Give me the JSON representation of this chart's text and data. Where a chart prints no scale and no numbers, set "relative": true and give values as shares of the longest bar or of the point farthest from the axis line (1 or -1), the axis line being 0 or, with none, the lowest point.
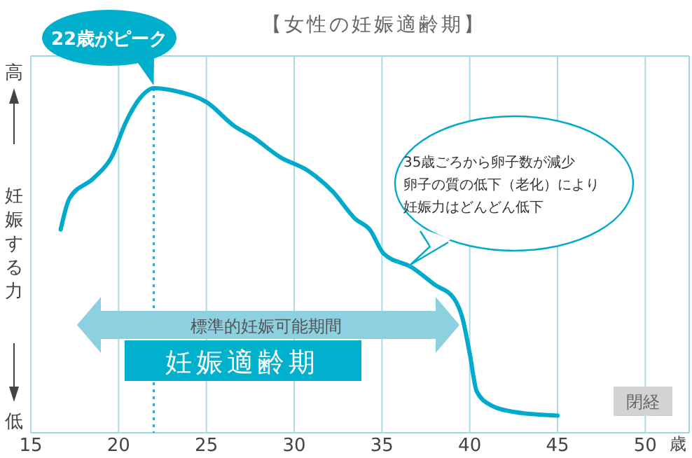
{
  "chart_data": {
    "type": "line",
    "title": "【女性の妊娠適齢期】",
    "ylabel": "妊娠する力",
    "xlabel": "歳",
    "relative": true,
    "grid": "x",
    "marker": "none",
    "xlim": [
      15,
      52.5
    ],
    "xticks": [
      15,
      20,
      25,
      30,
      35,
      40,
      45,
      50
    ],
    "x": [
      16.7,
      17.2,
      18.6,
      19.6,
      20.4,
      21.2,
      22,
      23.4,
      25,
      26.6,
      27.6,
      29.2,
      30.8,
      32.2,
      33.5,
      34.3,
      35.1,
      36.7,
      38,
      39.1,
      39.6,
      40,
      40.4,
      41.2,
      42.6,
      45
    ],
    "series": [
      {
        "color": "#00aacc",
        "values": [
          0.59,
          0.68,
          0.74,
          0.8,
          0.9,
          0.97,
          1,
          0.99,
          0.96,
          0.89,
          0.86,
          0.8,
          0.76,
          0.7,
          0.62,
          0.59,
          0.52,
          0.48,
          0.43,
          0.39,
          0.33,
          0.23,
          0.12,
          0.08,
          0.06,
          0.05
        ]
      }
    ],
    "ref_lines": [
      {
        "axis": "x",
        "value": 22,
        "color": "#33aacc",
        "line_style": "dotted"
      }
    ],
    "annotations": [
      {
        "text": "22歳がピーク",
        "x": 22,
        "y": 1
      },
      "35歳ごろから卵子数が減少卵子の質の低下（老化）により妊娠力はどんどん低下",
      "標準的妊娠可能期間",
      "妊娠適齢期",
      "閉経",
      "高",
      "低"
    ]
  }
}
